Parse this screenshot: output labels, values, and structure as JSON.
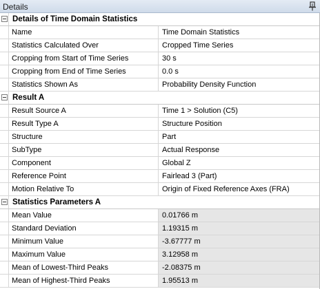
{
  "window": {
    "title": "Details",
    "pin_icon": "pin-icon"
  },
  "sections": [
    {
      "title": "Details of Time Domain Statistics",
      "rows": [
        {
          "name": "Name",
          "value": "Time Domain Statistics"
        },
        {
          "name": "Statistics Calculated Over",
          "value": "Cropped Time Series"
        },
        {
          "name": "Cropping from Start of Time Series",
          "value": "30 s"
        },
        {
          "name": "Cropping from End of Time Series",
          "value": "0.0 s"
        },
        {
          "name": "Statistics Shown As",
          "value": "Probability Density Function"
        }
      ]
    },
    {
      "title": "Result A",
      "rows": [
        {
          "name": "Result Source A",
          "value": "Time 1 > Solution (C5)"
        },
        {
          "name": "Result Type A",
          "value": "Structure Position"
        },
        {
          "name": "Structure",
          "value": "Part"
        },
        {
          "name": "SubType",
          "value": "Actual Response"
        },
        {
          "name": "Component",
          "value": "Global Z"
        },
        {
          "name": "Reference Point",
          "value": "Fairlead 3 (Part)"
        },
        {
          "name": "Motion Relative To",
          "value": "Origin of Fixed Reference Axes (FRA)"
        }
      ]
    },
    {
      "title": "Statistics Parameters A",
      "rows": [
        {
          "name": "Mean Value",
          "value": "0.01766 m"
        },
        {
          "name": "Standard Deviation",
          "value": "1.19315 m"
        },
        {
          "name": "Minimum Value",
          "value": "-3.67777 m"
        },
        {
          "name": "Maximum Value",
          "value": "3.12958 m"
        },
        {
          "name": "Mean of Lowest-Third Peaks",
          "value": "-2.08375 m"
        },
        {
          "name": "Mean of Highest-Third Peaks",
          "value": "1.95513 m"
        }
      ]
    }
  ]
}
